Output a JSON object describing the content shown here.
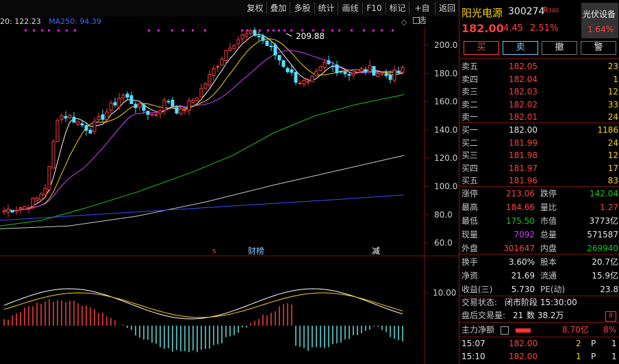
{
  "toolbar": {
    "buttons": [
      "复权",
      "叠加",
      "多股",
      "统计",
      "画线",
      "F10",
      "标记",
      "+自选",
      "返回"
    ]
  },
  "ma_legend": {
    "ma20": "20: 122.23",
    "ma250": "MA250: 94.39"
  },
  "chart": {
    "price_ticks": [
      "200.0",
      "180.0",
      "160.0",
      "140.0",
      "120.0",
      "100.0",
      "80.0",
      "60.0"
    ],
    "macd_tick": "10.00",
    "high_label": "209.88",
    "event_labels": {
      "s": "s",
      "caibao": "财榜",
      "jian": "减"
    }
  },
  "stock": {
    "name": "阳光电源",
    "code": "300274",
    "badge": "R",
    "badge_num": "300",
    "price": "182.00",
    "change": "4.45",
    "change_pct": "2.51%",
    "sector_name": "光伏设备",
    "sector_pct": "1.64%"
  },
  "actions": {
    "buy": "买",
    "sell": "卖",
    "cancel": "撤",
    "alert": "警"
  },
  "asks": [
    {
      "label": "卖五",
      "price": "182.05",
      "vol": "23"
    },
    {
      "label": "卖四",
      "price": "182.04",
      "vol": "1"
    },
    {
      "label": "卖三",
      "price": "182.03",
      "vol": "12"
    },
    {
      "label": "卖二",
      "price": "182.02",
      "vol": "33"
    },
    {
      "label": "卖一",
      "price": "182.01",
      "vol": "24"
    }
  ],
  "bids": [
    {
      "label": "买一",
      "price": "182.00",
      "vol": "1186"
    },
    {
      "label": "买二",
      "price": "181.99",
      "vol": "24"
    },
    {
      "label": "买三",
      "price": "181.98",
      "vol": "12"
    },
    {
      "label": "买四",
      "price": "181.97",
      "vol": "17"
    },
    {
      "label": "买五",
      "price": "181.96",
      "vol": "83"
    }
  ],
  "stats": {
    "zt_label": "涨停",
    "zt": "213.06",
    "dt_label": "跌停",
    "dt": "142.04",
    "high_label": "最高",
    "high": "184.66",
    "lb_label": "量比",
    "lb": "1.27",
    "low_label": "最低",
    "low": "175.50",
    "mv_label": "市值",
    "mv": "3773亿",
    "cur_label": "现量",
    "cur": "7092",
    "tot_label": "总量",
    "tot": "571587",
    "out_label": "外盘",
    "out": "301647",
    "in_label": "内盘",
    "in": "269940",
    "hs_label": "换手",
    "hs": "3.60%",
    "gb_label": "股本",
    "gb": "20.7亿",
    "jz_label": "净资",
    "jz": "21.69",
    "lt_label": "流通",
    "lt": "15.9亿",
    "sy_label": "收益(三)",
    "sy": "5.730",
    "pe_label": "PE(动)",
    "pe": "23.8"
  },
  "status": {
    "state_label": "交易状态:",
    "state": "闭市阶段 15:30:00",
    "after_label": "盘后交易量:",
    "after_vol": "21",
    "after_amt": "数 38.2万"
  },
  "flow": {
    "label": "主力净额",
    "value": "8.70亿",
    "pct": "8%"
  },
  "ticks": [
    {
      "time": "15:07",
      "price": "182.00",
      "vol": "2",
      "dir": "P",
      "n": "1"
    },
    {
      "time": "15:10",
      "price": "182.00",
      "vol": "1",
      "dir": "P",
      "n": "1"
    }
  ],
  "colors": {
    "up": "#ff4040",
    "down": "#19c819",
    "ma5": "#ffffff",
    "ma10": "#ffd400",
    "ma20": "#d040ff",
    "ma60": "#19c819",
    "ma120": "#cccccc",
    "ma250": "#3f4bff",
    "macd_pos": "#ff4040",
    "macd_neg": "#60e0e0"
  }
}
